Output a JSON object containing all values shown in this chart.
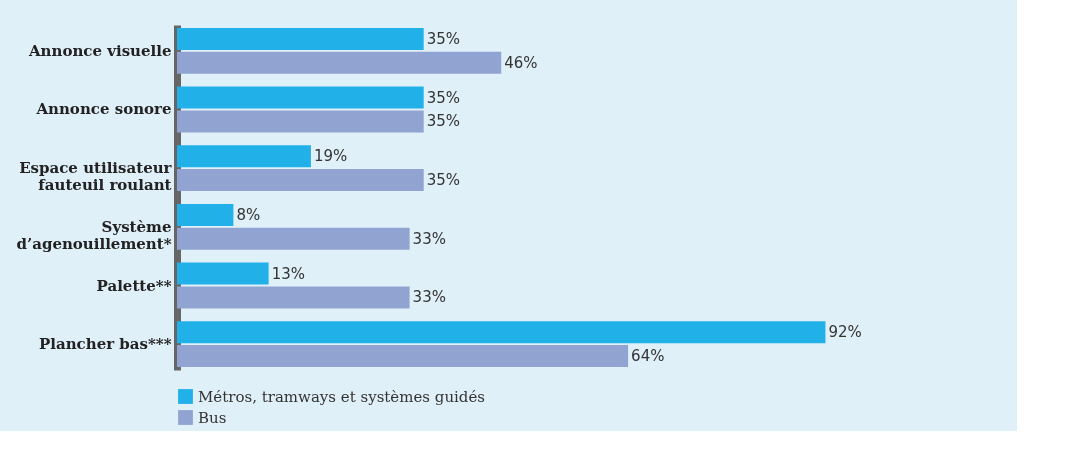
{
  "chart_data": {
    "type": "bar",
    "orientation": "horizontal",
    "categories": [
      "Annonce visuelle",
      "Annonce sonore",
      "Espace utilisateur fauteuil roulant",
      "Système d’agenouillement*",
      "Palette**",
      "Plancher bas***"
    ],
    "series": [
      {
        "name": "Métros, tramways et systèmes guidés",
        "color": "#21b1e8",
        "values": [
          35,
          35,
          19,
          8,
          13,
          92
        ],
        "value_labels": [
          "35%",
          "35%",
          "19%",
          "8%",
          "13%",
          "92%"
        ]
      },
      {
        "name": "Bus",
        "color": "#91a4d1",
        "values": [
          46,
          35,
          35,
          33,
          33,
          64
        ],
        "value_labels": [
          "46%",
          "35%",
          "35%",
          "33%",
          "33%",
          "64%"
        ]
      }
    ],
    "legend": "bottom left",
    "grid": false
  }
}
